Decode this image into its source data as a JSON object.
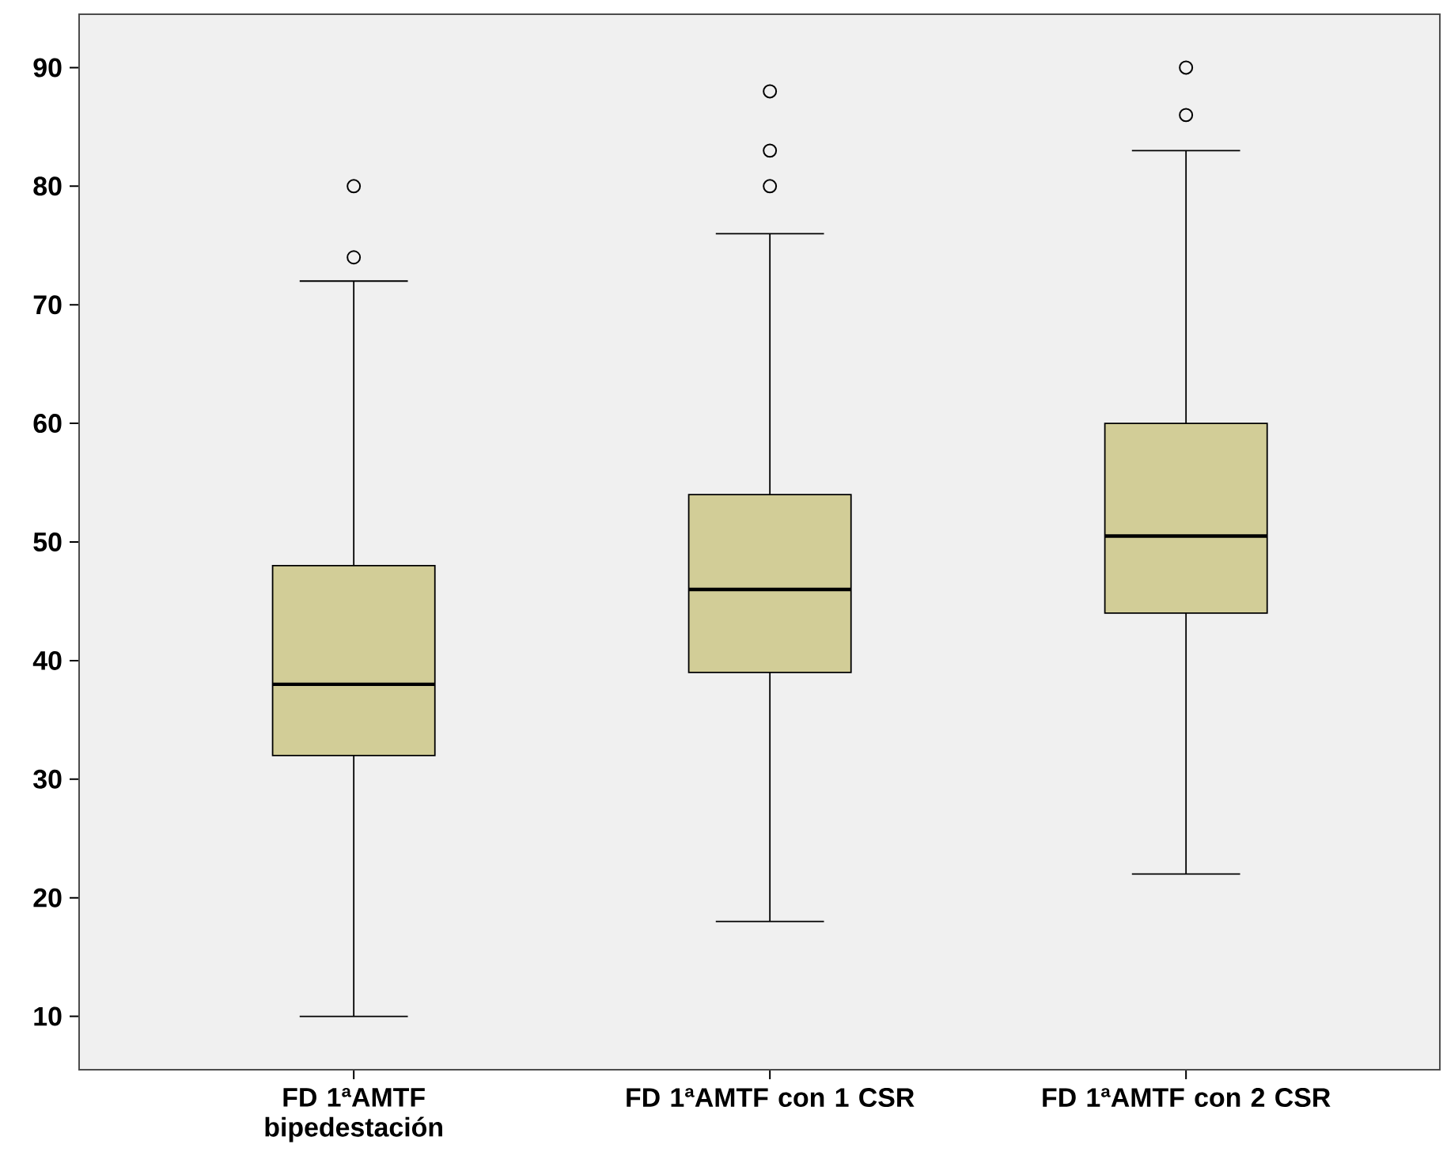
{
  "chart_data": {
    "type": "box",
    "categories": [
      "FD 1ªAMTF bipedestación",
      "FD 1ªAMTF con 1 CSR",
      "FD 1ªAMTF con 2 CSR"
    ],
    "boxes": [
      {
        "low": 10,
        "q1": 32,
        "median": 38,
        "q3": 48,
        "high": 72,
        "outliers": [
          74,
          80
        ]
      },
      {
        "low": 18,
        "q1": 39,
        "median": 46,
        "q3": 54,
        "high": 76,
        "outliers": [
          80,
          83,
          88
        ]
      },
      {
        "low": 22,
        "q1": 44,
        "median": 50.5,
        "q3": 60,
        "high": 83,
        "outliers": [
          86,
          90
        ]
      }
    ],
    "color": "#d2cd97",
    "ylim": [
      5.5,
      94.5
    ],
    "yticks": [
      10,
      20,
      30,
      40,
      50,
      60,
      70,
      80,
      90
    ],
    "grid": false
  }
}
